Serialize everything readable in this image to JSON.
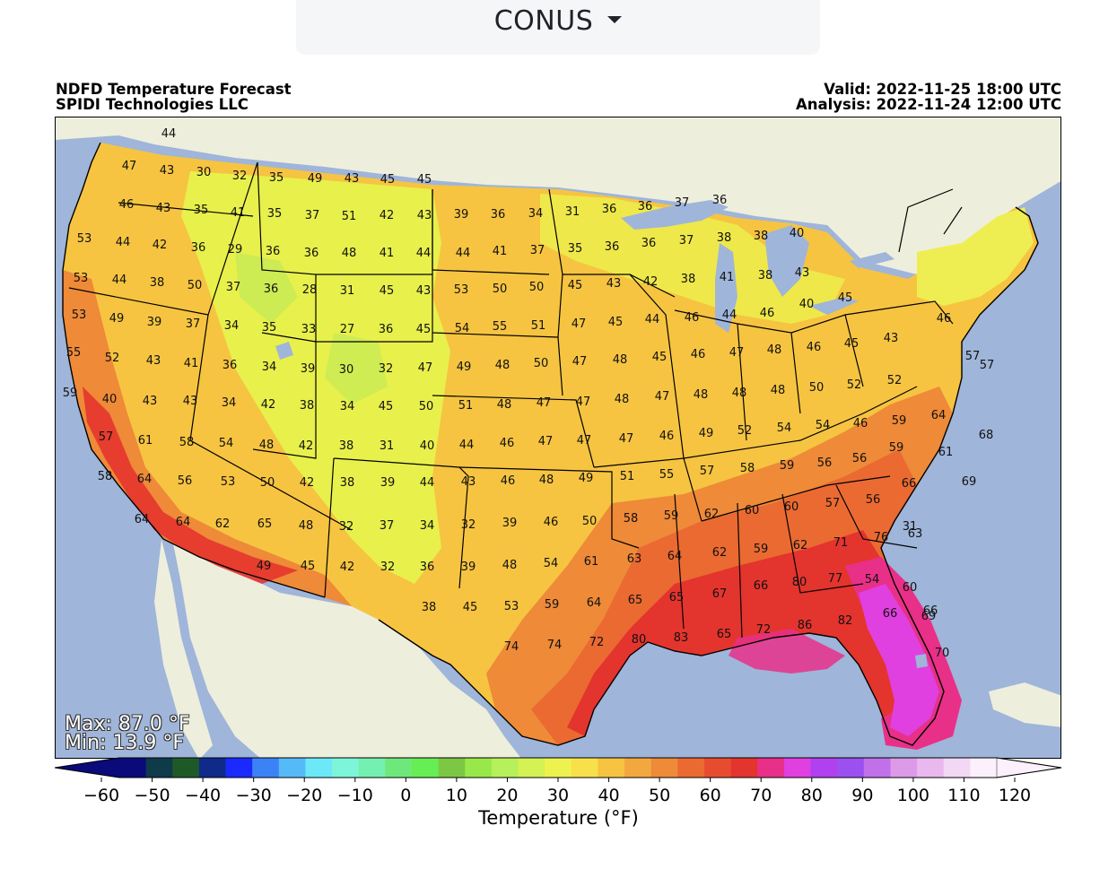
{
  "region_selector": {
    "label": "CONUS",
    "icon": "caret-down-icon"
  },
  "header": {
    "title": "NDFD Temperature Forecast",
    "org": "SPIDI Technologies LLC",
    "valid": "Valid: 2022-11-25 18:00 UTC",
    "analysis": "Analysis: 2022-11-24 12:00 UTC"
  },
  "stats": {
    "max": "Max: 87.0 °F",
    "min": "Min: 13.9 °F"
  },
  "colorbar": {
    "title": "Temperature (°F)",
    "ticks": [
      "−60",
      "−50",
      "−40",
      "−30",
      "−20",
      "−10",
      "0",
      "10",
      "20",
      "30",
      "40",
      "50",
      "60",
      "70",
      "80",
      "90",
      "100",
      "110",
      "120"
    ],
    "colors": [
      "#0a0a7a",
      "#0f3a4a",
      "#1e5a28",
      "#102a8a",
      "#1a2aff",
      "#3b82f6",
      "#56b9f8",
      "#6de8f8",
      "#7cf5d8",
      "#74f0b0",
      "#6ee87a",
      "#66ee55",
      "#7cc844",
      "#98e84a",
      "#b6f05a",
      "#d4f254",
      "#eef24e",
      "#f8e04a",
      "#f6c441",
      "#f2a83e",
      "#ee8a38",
      "#ea6a32",
      "#e84c30",
      "#e4342e",
      "#e83088",
      "#e040e0",
      "#b040f0",
      "#9c50f0",
      "#c070e8",
      "#dc9ae8",
      "#e8b8ee",
      "#f2d8f4",
      "#fbf0fb"
    ],
    "range": [
      -60,
      120
    ]
  },
  "map_colors": {
    "ocean": "#9fb5d9",
    "land_outside": "#eeeedd",
    "lake": "#9fb5d9",
    "cool": "#e8f04c",
    "mild": "#f6c441",
    "warm": "#f2a83e",
    "hot": "#ea6a32",
    "hotter": "#e4342e",
    "magenta": "#e040e0",
    "pink": "#e83088",
    "green": "#b6e85a"
  },
  "temperature_labels": [
    {
      "v": "44"
    },
    {
      "v": "47"
    },
    {
      "v": "43"
    },
    {
      "v": "30"
    },
    {
      "v": "32"
    },
    {
      "v": "35"
    },
    {
      "v": "49"
    },
    {
      "v": "43"
    },
    {
      "v": "45"
    },
    {
      "v": "45"
    },
    {
      "v": "46"
    },
    {
      "v": "43"
    },
    {
      "v": "35"
    },
    {
      "v": "41"
    },
    {
      "v": "35"
    },
    {
      "v": "37"
    },
    {
      "v": "51"
    },
    {
      "v": "42"
    },
    {
      "v": "43"
    },
    {
      "v": "39"
    },
    {
      "v": "36"
    },
    {
      "v": "34"
    },
    {
      "v": "31"
    },
    {
      "v": "36"
    },
    {
      "v": "36"
    },
    {
      "v": "37"
    },
    {
      "v": "36"
    },
    {
      "v": "53"
    },
    {
      "v": "44"
    },
    {
      "v": "42"
    },
    {
      "v": "36"
    },
    {
      "v": "29"
    },
    {
      "v": "36"
    },
    {
      "v": "36"
    },
    {
      "v": "48"
    },
    {
      "v": "41"
    },
    {
      "v": "44"
    },
    {
      "v": "44"
    },
    {
      "v": "41"
    },
    {
      "v": "37"
    },
    {
      "v": "35"
    },
    {
      "v": "36"
    },
    {
      "v": "36"
    },
    {
      "v": "37"
    },
    {
      "v": "38"
    },
    {
      "v": "38"
    },
    {
      "v": "40"
    },
    {
      "v": "53"
    },
    {
      "v": "44"
    },
    {
      "v": "38"
    },
    {
      "v": "50"
    },
    {
      "v": "37"
    },
    {
      "v": "36"
    },
    {
      "v": "28"
    },
    {
      "v": "31"
    },
    {
      "v": "45"
    },
    {
      "v": "43"
    },
    {
      "v": "53"
    },
    {
      "v": "50"
    },
    {
      "v": "50"
    },
    {
      "v": "45"
    },
    {
      "v": "43"
    },
    {
      "v": "42"
    },
    {
      "v": "38"
    },
    {
      "v": "41"
    },
    {
      "v": "38"
    },
    {
      "v": "43"
    },
    {
      "v": "53"
    },
    {
      "v": "49"
    },
    {
      "v": "39"
    },
    {
      "v": "37"
    },
    {
      "v": "34"
    },
    {
      "v": "35"
    },
    {
      "v": "33"
    },
    {
      "v": "27"
    },
    {
      "v": "36"
    },
    {
      "v": "45"
    },
    {
      "v": "54"
    },
    {
      "v": "55"
    },
    {
      "v": "51"
    },
    {
      "v": "47"
    },
    {
      "v": "45"
    },
    {
      "v": "44"
    },
    {
      "v": "46"
    },
    {
      "v": "44"
    },
    {
      "v": "46"
    },
    {
      "v": "40"
    },
    {
      "v": "45"
    },
    {
      "v": "55"
    },
    {
      "v": "52"
    },
    {
      "v": "43"
    },
    {
      "v": "41"
    },
    {
      "v": "36"
    },
    {
      "v": "34"
    },
    {
      "v": "39"
    },
    {
      "v": "30"
    },
    {
      "v": "32"
    },
    {
      "v": "47"
    },
    {
      "v": "49"
    },
    {
      "v": "48"
    },
    {
      "v": "50"
    },
    {
      "v": "47"
    },
    {
      "v": "48"
    },
    {
      "v": "45"
    },
    {
      "v": "46"
    },
    {
      "v": "47"
    },
    {
      "v": "48"
    },
    {
      "v": "46"
    },
    {
      "v": "45"
    },
    {
      "v": "43"
    },
    {
      "v": "46"
    },
    {
      "v": "57"
    },
    {
      "v": "59"
    },
    {
      "v": "40"
    },
    {
      "v": "43"
    },
    {
      "v": "43"
    },
    {
      "v": "34"
    },
    {
      "v": "42"
    },
    {
      "v": "38"
    },
    {
      "v": "34"
    },
    {
      "v": "45"
    },
    {
      "v": "50"
    },
    {
      "v": "51"
    },
    {
      "v": "48"
    },
    {
      "v": "47"
    },
    {
      "v": "47"
    },
    {
      "v": "48"
    },
    {
      "v": "47"
    },
    {
      "v": "48"
    },
    {
      "v": "48"
    },
    {
      "v": "48"
    },
    {
      "v": "50"
    },
    {
      "v": "52"
    },
    {
      "v": "52"
    },
    {
      "v": "57"
    },
    {
      "v": "57"
    },
    {
      "v": "61"
    },
    {
      "v": "58"
    },
    {
      "v": "54"
    },
    {
      "v": "48"
    },
    {
      "v": "42"
    },
    {
      "v": "38"
    },
    {
      "v": "31"
    },
    {
      "v": "40"
    },
    {
      "v": "44"
    },
    {
      "v": "46"
    },
    {
      "v": "47"
    },
    {
      "v": "47"
    },
    {
      "v": "47"
    },
    {
      "v": "46"
    },
    {
      "v": "49"
    },
    {
      "v": "52"
    },
    {
      "v": "54"
    },
    {
      "v": "54"
    },
    {
      "v": "46"
    },
    {
      "v": "59"
    },
    {
      "v": "64"
    },
    {
      "v": "68"
    },
    {
      "v": "58"
    },
    {
      "v": "64"
    },
    {
      "v": "56"
    },
    {
      "v": "53"
    },
    {
      "v": "50"
    },
    {
      "v": "42"
    },
    {
      "v": "38"
    },
    {
      "v": "39"
    },
    {
      "v": "44"
    },
    {
      "v": "43"
    },
    {
      "v": "46"
    },
    {
      "v": "48"
    },
    {
      "v": "49"
    },
    {
      "v": "51"
    },
    {
      "v": "55"
    },
    {
      "v": "57"
    },
    {
      "v": "58"
    },
    {
      "v": "59"
    },
    {
      "v": "56"
    },
    {
      "v": "56"
    },
    {
      "v": "59"
    },
    {
      "v": "61"
    },
    {
      "v": "69"
    },
    {
      "v": "64"
    },
    {
      "v": "64"
    },
    {
      "v": "62"
    },
    {
      "v": "65"
    },
    {
      "v": "48"
    },
    {
      "v": "32"
    },
    {
      "v": "37"
    },
    {
      "v": "34"
    },
    {
      "v": "32"
    },
    {
      "v": "39"
    },
    {
      "v": "46"
    },
    {
      "v": "50"
    },
    {
      "v": "58"
    },
    {
      "v": "59"
    },
    {
      "v": "62"
    },
    {
      "v": "60"
    },
    {
      "v": "60"
    },
    {
      "v": "57"
    },
    {
      "v": "56"
    },
    {
      "v": "66"
    },
    {
      "v": "63"
    },
    {
      "v": "49"
    },
    {
      "v": "45"
    },
    {
      "v": "42"
    },
    {
      "v": "32"
    },
    {
      "v": "36"
    },
    {
      "v": "39"
    },
    {
      "v": "48"
    },
    {
      "v": "54"
    },
    {
      "v": "61"
    },
    {
      "v": "63"
    },
    {
      "v": "64"
    },
    {
      "v": "62"
    },
    {
      "v": "59"
    },
    {
      "v": "62"
    },
    {
      "v": "71"
    },
    {
      "v": "76"
    },
    {
      "v": "31"
    },
    {
      "v": "38"
    },
    {
      "v": "45"
    },
    {
      "v": "53"
    },
    {
      "v": "59"
    },
    {
      "v": "64"
    },
    {
      "v": "65"
    },
    {
      "v": "65"
    },
    {
      "v": "67"
    },
    {
      "v": "66"
    },
    {
      "v": "80"
    },
    {
      "v": "77"
    },
    {
      "v": "54"
    },
    {
      "v": "60"
    },
    {
      "v": "66"
    },
    {
      "v": "66"
    },
    {
      "v": "69"
    },
    {
      "v": "70"
    },
    {
      "v": "74"
    },
    {
      "v": "74"
    },
    {
      "v": "72"
    },
    {
      "v": "80"
    },
    {
      "v": "83"
    },
    {
      "v": "65"
    },
    {
      "v": "72"
    },
    {
      "v": "86"
    },
    {
      "v": "82"
    }
  ]
}
